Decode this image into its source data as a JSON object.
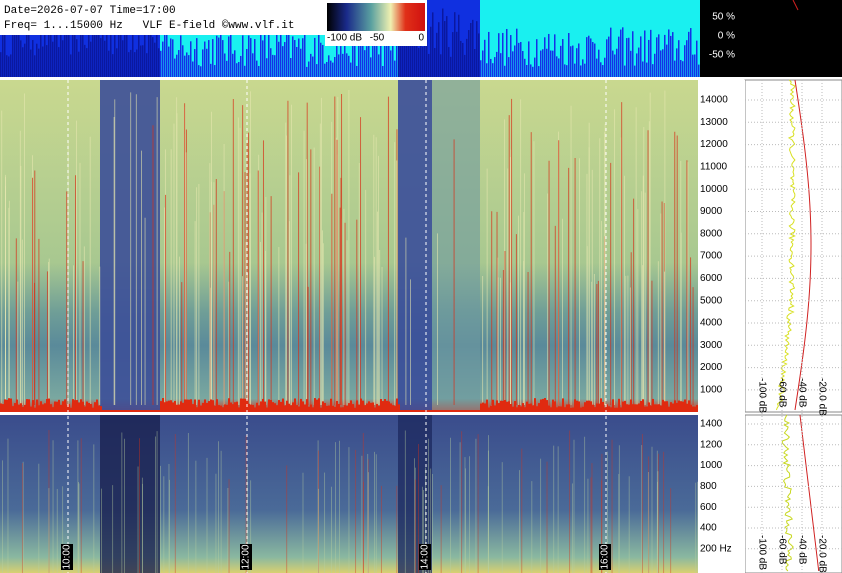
{
  "header": {
    "date_line": "Date=2026-07-07 Time=17:00",
    "freq_line": "Freq= 1...15000 Hz   VLF E-field ©www.vlf.it"
  },
  "colorbar": {
    "labels": [
      "-100 dB",
      "-50",
      "0"
    ]
  },
  "waveform_axis": {
    "labels": [
      "50 %",
      "0 %",
      "-50 %"
    ]
  },
  "spectrum_axis": {
    "labels": [
      "14000",
      "13000",
      "12000",
      "11000",
      "10000",
      "9000",
      "8000",
      "7000",
      "6000",
      "5000",
      "4000",
      "3000",
      "2000",
      "1000"
    ]
  },
  "zoom_axis": {
    "labels": [
      "1400",
      "1200",
      "1000",
      "800",
      "600",
      "400",
      "200 Hz"
    ]
  },
  "time_labels": [
    "10:00",
    "12:00",
    "14:00",
    "16:00"
  ],
  "level_panel": {
    "labels": [
      "-100 dB",
      "-60 dB",
      "-40 dB",
      "-20.0 dB"
    ]
  },
  "zoom_level_panel": {
    "labels": [
      "-100 dB",
      "-60 dB",
      "-40 dB",
      "-20.0 dB"
    ]
  }
}
